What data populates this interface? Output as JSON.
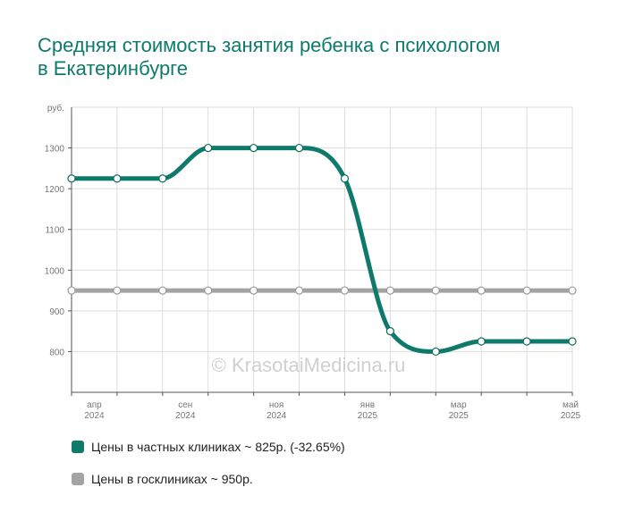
{
  "title": "Средняя стоимость занятия ребенка с психологом в Екатеринбурге",
  "watermark": "© KrasotaiMedicina.ru",
  "colors": {
    "private": "#0d7a6b",
    "public": "#a3a3a3",
    "grid": "#dddddd",
    "axis": "#555555",
    "tick_text": "#777777"
  },
  "chart_data": {
    "type": "line",
    "ylabel": "руб.",
    "ylim": [
      700,
      1400
    ],
    "yticks": [
      800,
      900,
      1000,
      1100,
      1200,
      1300
    ],
    "x_tick_labels": [
      {
        "month": "апр",
        "year": "2024",
        "index": 1
      },
      {
        "month": "сен",
        "year": "2024",
        "index": 3
      },
      {
        "month": "ноя",
        "year": "2024",
        "index": 5
      },
      {
        "month": "янв",
        "year": "2025",
        "index": 7
      },
      {
        "month": "мар",
        "year": "2025",
        "index": 9
      },
      {
        "month": "май",
        "year": "2025",
        "index": 11
      }
    ],
    "series": [
      {
        "name": "Цены в частных клиниках",
        "color": "#0d7a6b",
        "values": [
          1225,
          1225,
          1225,
          1300,
          1300,
          1300,
          1225,
          850,
          800,
          825,
          825,
          825
        ]
      },
      {
        "name": "Цены в госклиниках",
        "color": "#a3a3a3",
        "values": [
          950,
          950,
          950,
          950,
          950,
          950,
          950,
          950,
          950,
          950,
          950,
          950
        ]
      }
    ]
  },
  "legend": [
    {
      "label": "Цены в частных клиниках ~ 825р. (-32.65%)",
      "color": "#0d7a6b"
    },
    {
      "label": "Цены в госклиниках ~ 950р.",
      "color": "#a3a3a3"
    }
  ]
}
